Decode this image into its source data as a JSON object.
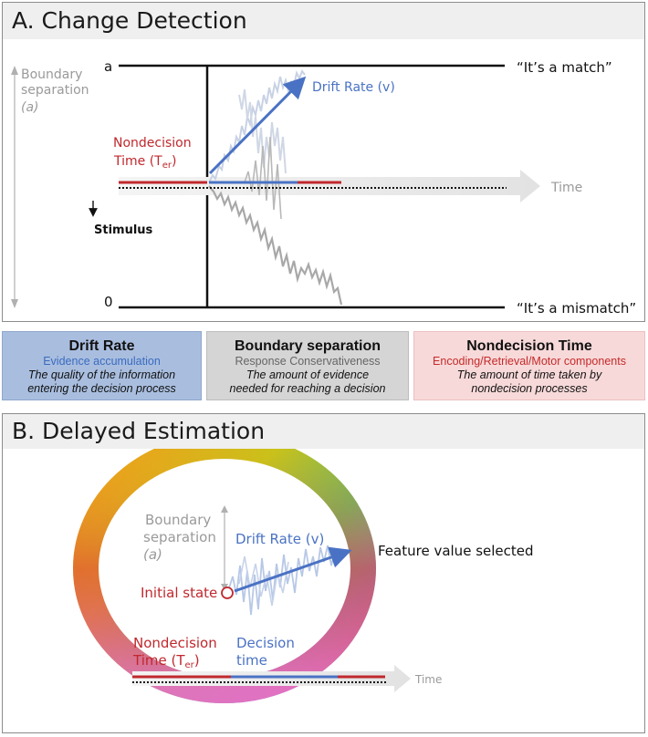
{
  "panel_a": {
    "title": "A. Change Detection",
    "axis_label_line1": "Boundary",
    "axis_label_line2": "separation",
    "axis_label_line3": "(a)",
    "upper_bound_label": "a",
    "lower_bound_label": "0",
    "match_label": "“It’s a match”",
    "mismatch_label": "“It’s a mismatch”",
    "drift_label": "Drift Rate (v)",
    "nondecision_line1": "Nondecision",
    "nondecision_line2": "Time (T",
    "nondecision_sub": "er",
    "time_label": "Time",
    "stimulus_label": "Stimulus"
  },
  "boxes": [
    {
      "heading": "Drift Rate",
      "subheading": "Evidence accumulation",
      "desc_line1": "The quality of the information",
      "desc_line2": "entering the decision process"
    },
    {
      "heading": "Boundary separation",
      "subheading": "Response Conservativeness",
      "desc_line1": "The amount of evidence",
      "desc_line2": "needed for reaching a decision"
    },
    {
      "heading": "Nondecision Time",
      "subheading": "Encoding/Retrieval/Motor components",
      "desc_line1": "The amount of time taken by",
      "desc_line2": "nondecision processes"
    }
  ],
  "panel_b": {
    "title": "B. Delayed Estimation",
    "boundary_line1": "Boundary",
    "boundary_line2": "separation",
    "boundary_line3": "(a)",
    "drift_label": "Drift Rate (v)",
    "feature_label": "Feature value selected",
    "initial_label": "Initial state",
    "nondecision_line1": "Nondecision",
    "nondecision_line2": "Time (T",
    "nondecision_sub": "er",
    "decision_line1": "Decision",
    "decision_line2": "time",
    "time_label": "Time"
  },
  "colors": {
    "drift_blue": "#4a72c4",
    "nondecision_red": "#c0282d",
    "gray_text": "#9a9a9a",
    "trace_gray": "#a9a9a9",
    "trace_blue": "#b7c8e6"
  }
}
